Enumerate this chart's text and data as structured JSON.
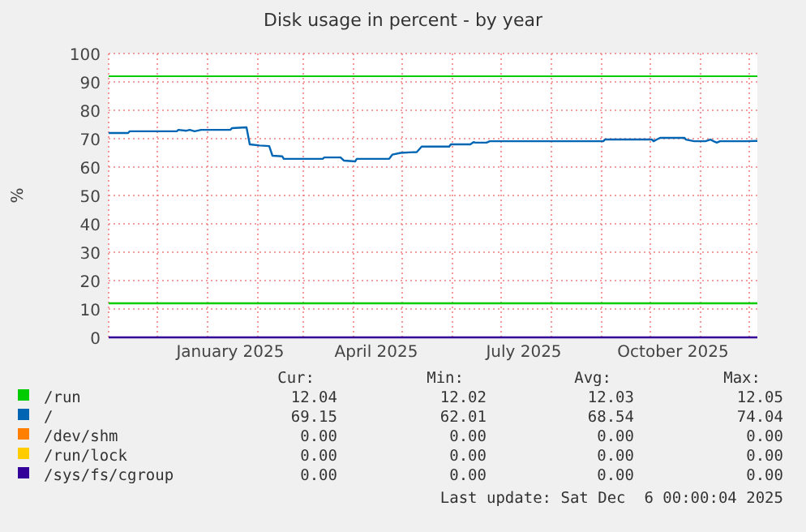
{
  "chart_data": {
    "type": "line",
    "title": "Disk usage in percent - by year",
    "ylabel": "%",
    "xlim": [
      "2024-11-01",
      "2025-12-06"
    ],
    "xticks": [
      {
        "value": "2025-01-15",
        "label": "January 2025"
      },
      {
        "value": "2025-04-15",
        "label": "April 2025"
      },
      {
        "value": "2025-07-15",
        "label": "July 2025"
      },
      {
        "value": "2025-10-15",
        "label": "October 2025"
      }
    ],
    "ylim": [
      0,
      100
    ],
    "yticks": [
      0,
      10,
      20,
      30,
      40,
      50,
      60,
      70,
      80,
      90,
      100
    ],
    "grid": true,
    "legend": "bottom",
    "line_style": "solid",
    "marker": "none",
    "ref_lines": [
      {
        "axis": "y",
        "value": 92,
        "color": "#00cc00"
      }
    ],
    "series": [
      {
        "name": "/run",
        "color": "#00cc00",
        "x": [
          "2024-11-01",
          "2025-06-01",
          "2025-12-06"
        ],
        "values": [
          12.0,
          12.0,
          12.0
        ]
      },
      {
        "name": "/",
        "color": "#0066b3",
        "x": [
          "2024-11-01",
          "2024-11-13",
          "2024-11-14",
          "2024-12-13",
          "2024-12-14",
          "2024-12-19",
          "2024-12-21",
          "2024-12-24",
          "2024-12-28",
          "2025-01-15",
          "2025-01-16",
          "2025-01-25",
          "2025-01-27",
          "2025-02-02",
          "2025-02-08",
          "2025-02-10",
          "2025-02-16",
          "2025-02-17",
          "2025-03-13",
          "2025-03-14",
          "2025-03-24",
          "2025-03-26",
          "2025-04-02",
          "2025-04-03",
          "2025-04-23",
          "2025-04-25",
          "2025-04-30",
          "2025-05-10",
          "2025-05-13",
          "2025-05-30",
          "2025-05-31",
          "2025-06-12",
          "2025-06-14",
          "2025-06-15",
          "2025-06-22",
          "2025-06-24",
          "2025-09-02",
          "2025-09-03",
          "2025-10-02",
          "2025-10-03",
          "2025-10-05",
          "2025-10-07",
          "2025-10-22",
          "2025-10-23",
          "2025-10-28",
          "2025-11-04",
          "2025-11-07",
          "2025-11-09",
          "2025-11-11",
          "2025-11-13",
          "2025-11-29",
          "2025-12-06"
        ],
        "values": [
          72.0,
          72.0,
          72.6,
          72.6,
          73.1,
          72.8,
          73.1,
          72.6,
          73.1,
          73.1,
          73.7,
          74.0,
          68.0,
          67.6,
          67.4,
          64.0,
          63.8,
          62.9,
          62.9,
          63.4,
          63.4,
          62.3,
          62.0,
          62.9,
          62.9,
          64.4,
          65.0,
          65.3,
          67.2,
          67.2,
          68.0,
          68.0,
          68.8,
          68.6,
          68.6,
          69.1,
          69.1,
          69.7,
          69.7,
          69.1,
          69.7,
          70.3,
          70.3,
          69.7,
          69.1,
          69.1,
          69.7,
          69.1,
          68.6,
          69.1,
          69.1,
          69.2
        ]
      },
      {
        "name": "/dev/shm",
        "color": "#ff8000"
      },
      {
        "name": "/run/lock",
        "color": "#ffcc00"
      },
      {
        "name": "/sys/fs/cgroup",
        "color": "#330099",
        "x": [
          "2024-11-01",
          "2025-12-06"
        ],
        "values": [
          0,
          0
        ]
      }
    ],
    "annotations": [
      "Cur:",
      "Min:",
      "Avg:",
      "Max:",
      "12.04",
      "12.02",
      "12.03",
      "12.05",
      "69.15",
      "62.01",
      "68.54",
      "74.04",
      "0.00",
      "0.00",
      "0.00",
      "0.00",
      "0.00",
      "0.00",
      "0.00",
      "0.00",
      "0.00",
      "0.00",
      "0.00",
      "0.00",
      "Last update: Sat Dec  6 00:00:04 2025"
    ]
  }
}
